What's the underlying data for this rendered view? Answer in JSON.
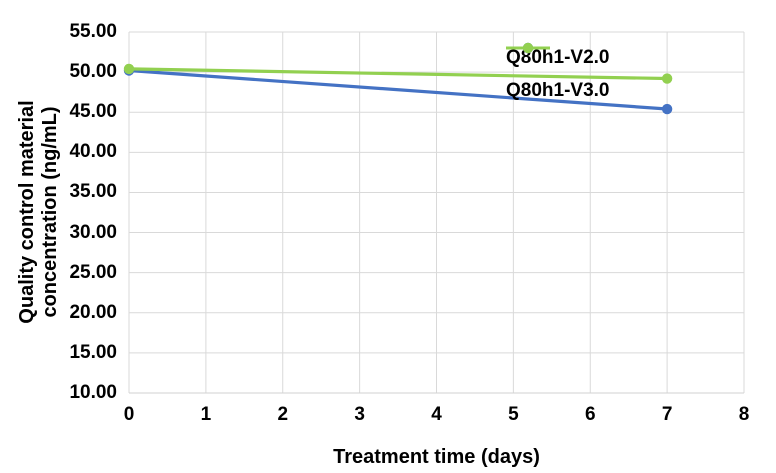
{
  "chart_data": {
    "type": "line",
    "title": "",
    "xlabel": "Treatment time (days)",
    "ylabel": "Quality control material\nconcentration (ng/mL)",
    "x": [
      0,
      7
    ],
    "series": [
      {
        "name": "Q80h1-V2.0",
        "color": "#4472C4",
        "values": [
          50.2,
          45.4
        ]
      },
      {
        "name": "Q80h1-V3.0",
        "color": "#92D050",
        "values": [
          50.4,
          49.2
        ]
      }
    ],
    "xlim": [
      0,
      8
    ],
    "ylim": [
      10,
      55
    ],
    "x_ticks": [
      "0",
      "1",
      "2",
      "3",
      "4",
      "5",
      "6",
      "7",
      "8"
    ],
    "y_ticks": [
      "55.00",
      "50.00",
      "45.00",
      "40.00",
      "35.00",
      "30.00",
      "25.00",
      "20.00",
      "15.00",
      "10.00"
    ],
    "grid": true,
    "gridline_color": "#D9D9D9",
    "axis_line_color": "#D2D2D2",
    "legend_position": "top-right-inside",
    "text_color": "#000000",
    "background": "#FFFFFF",
    "marker": "circle",
    "line_width": 3.2,
    "marker_radius": 5.2
  }
}
